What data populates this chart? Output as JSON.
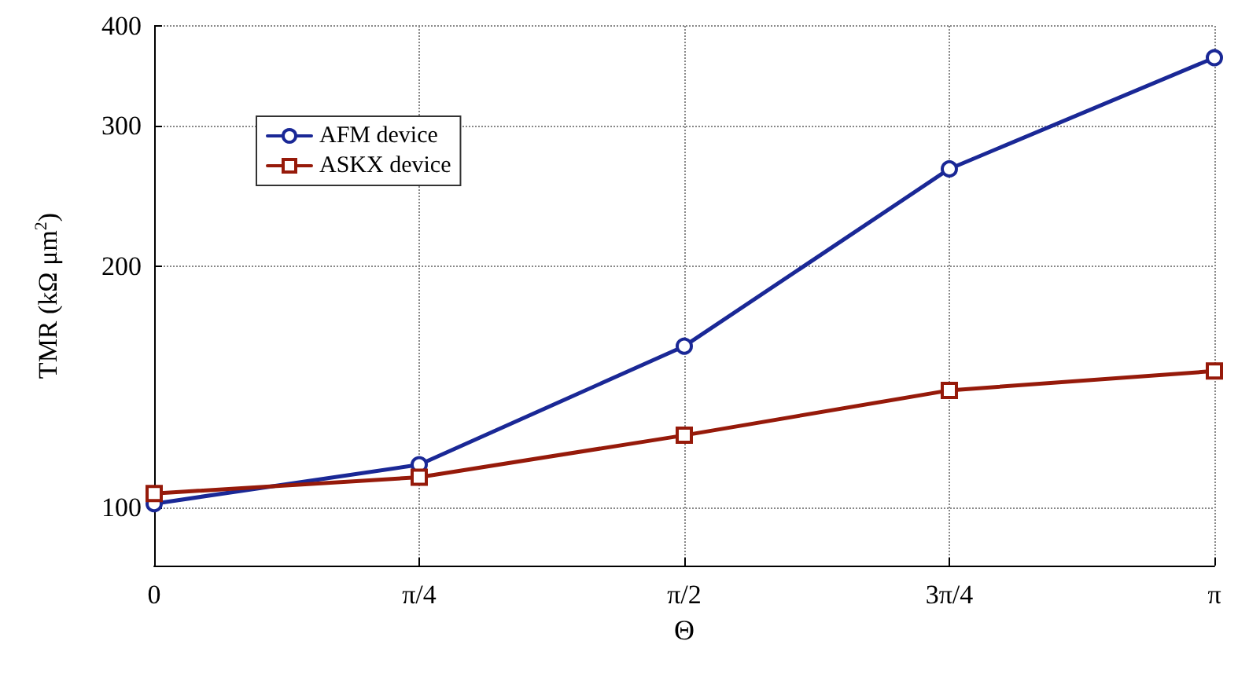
{
  "chart_data": {
    "type": "line",
    "xlabel": "Θ",
    "ylabel": "TMR (kΩ μm$^{2}$)",
    "categories": [
      "0",
      "π/4",
      "π/2",
      "3π/4",
      "π"
    ],
    "series": [
      {
        "name": "AFM device",
        "color": "#1a2896",
        "marker": "circle",
        "values": [
          101,
          113,
          159,
          265,
          365
        ]
      },
      {
        "name": "ASKX device",
        "color": "#961a0a",
        "marker": "square",
        "values": [
          104,
          109,
          123,
          140,
          148
        ]
      }
    ],
    "log": "y",
    "ylim": [
      84.5,
      400
    ],
    "yticks": [
      100,
      200,
      300,
      400
    ],
    "grid": true,
    "legend": "top left",
    "line_style": "solid"
  }
}
